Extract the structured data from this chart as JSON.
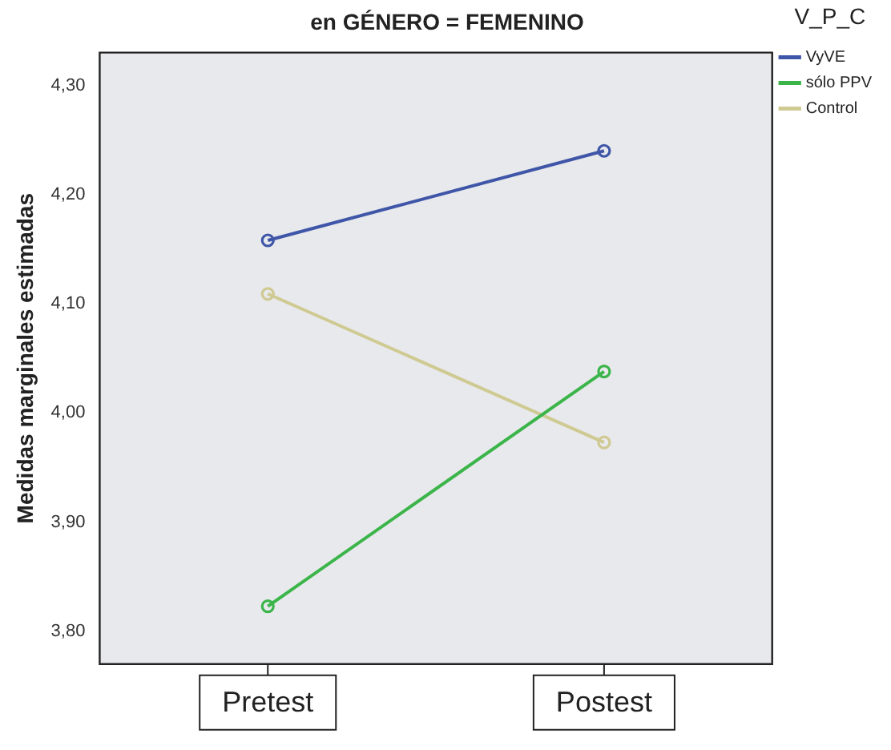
{
  "chart_data": {
    "type": "line",
    "title": "en GÉNERO = FEMENINO",
    "ylabel": "Medidas marginales estimadas",
    "legend_title": "V_P_C",
    "legend": "right",
    "marker": "circle",
    "grid": false,
    "categories": [
      "Pretest",
      "Postest"
    ],
    "ylim": [
      3.77,
      4.33
    ],
    "yticks": [
      {
        "value": 3.8,
        "label": "3,80"
      },
      {
        "value": 3.9,
        "label": "3,90"
      },
      {
        "value": 4.0,
        "label": "4,00"
      },
      {
        "value": 4.1,
        "label": "4,10"
      },
      {
        "value": 4.2,
        "label": "4,20"
      },
      {
        "value": 4.3,
        "label": "4,30"
      }
    ],
    "series": [
      {
        "name": "VyVE",
        "color": "#3f56a8",
        "values": [
          4.158,
          4.24
        ]
      },
      {
        "name": "sólo PPV",
        "color": "#3bb54a",
        "values": [
          3.823,
          4.038
        ]
      },
      {
        "name": "Control",
        "color": "#cfc992",
        "values": [
          4.109,
          3.973
        ]
      }
    ]
  }
}
